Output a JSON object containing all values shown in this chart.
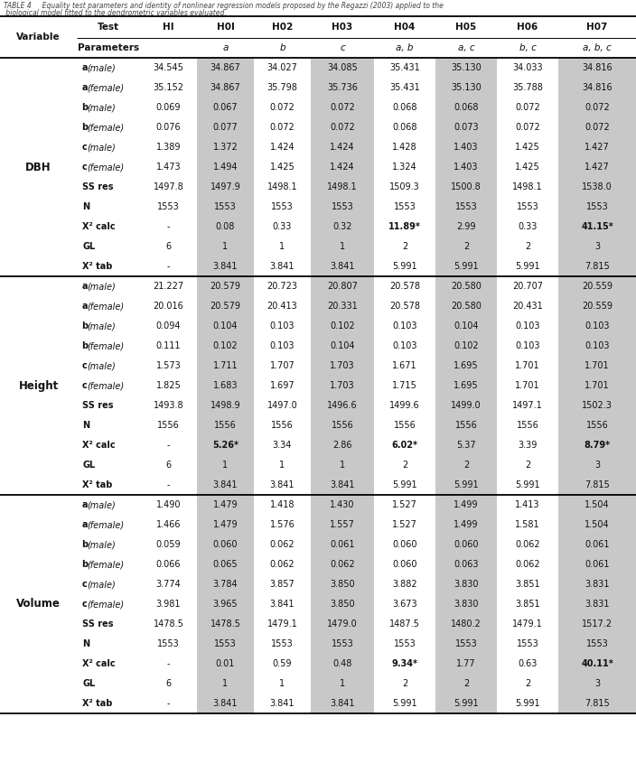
{
  "title_line1": "TABLE 4     Equality test parameters and identity of nonlinear regression models proposed by the Regazzi (2003) applied to the",
  "title_line2": " biological model fitted to the dendrometric variables evaluated.",
  "sections": [
    {
      "name": "DBH",
      "rows": [
        {
          "lb": "a",
          "li": "(male)",
          "values": [
            "34.545",
            "34.867",
            "34.027",
            "34.085",
            "35.431",
            "35.130",
            "34.033",
            "34.816"
          ],
          "bv": [
            0,
            0,
            0,
            0,
            0,
            0,
            0,
            0
          ]
        },
        {
          "lb": "a",
          "li": "(female)",
          "values": [
            "35.152",
            "34.867",
            "35.798",
            "35.736",
            "35.431",
            "35.130",
            "35.788",
            "34.816"
          ],
          "bv": [
            0,
            0,
            0,
            0,
            0,
            0,
            0,
            0
          ]
        },
        {
          "lb": "b",
          "li": "(male)",
          "values": [
            "0.069",
            "0.067",
            "0.072",
            "0.072",
            "0.068",
            "0.068",
            "0.072",
            "0.072"
          ],
          "bv": [
            0,
            0,
            0,
            0,
            0,
            0,
            0,
            0
          ]
        },
        {
          "lb": "b",
          "li": "(female)",
          "values": [
            "0.076",
            "0.077",
            "0.072",
            "0.072",
            "0.068",
            "0.073",
            "0.072",
            "0.072"
          ],
          "bv": [
            0,
            0,
            0,
            0,
            0,
            0,
            0,
            0
          ]
        },
        {
          "lb": "c",
          "li": "(male)",
          "values": [
            "1.389",
            "1.372",
            "1.424",
            "1.424",
            "1.428",
            "1.403",
            "1.425",
            "1.427"
          ],
          "bv": [
            0,
            0,
            0,
            0,
            0,
            0,
            0,
            0
          ]
        },
        {
          "lb": "c",
          "li": "(female)",
          "values": [
            "1.473",
            "1.494",
            "1.425",
            "1.424",
            "1.324",
            "1.403",
            "1.425",
            "1.427"
          ],
          "bv": [
            0,
            0,
            0,
            0,
            0,
            0,
            0,
            0
          ]
        },
        {
          "lb": "SS res",
          "li": "",
          "values": [
            "1497.8",
            "1497.9",
            "1498.1",
            "1498.1",
            "1509.3",
            "1500.8",
            "1498.1",
            "1538.0"
          ],
          "bv": [
            0,
            0,
            0,
            0,
            0,
            0,
            0,
            0
          ]
        },
        {
          "lb": "N",
          "li": "",
          "values": [
            "1553",
            "1553",
            "1553",
            "1553",
            "1553",
            "1553",
            "1553",
            "1553"
          ],
          "bv": [
            0,
            0,
            0,
            0,
            0,
            0,
            0,
            0
          ]
        },
        {
          "lb": "X² calc",
          "li": "",
          "values": [
            "-",
            "0.08",
            "0.33",
            "0.32",
            "11.89*",
            "2.99",
            "0.33",
            "41.15*"
          ],
          "bv": [
            0,
            0,
            0,
            0,
            1,
            0,
            0,
            1
          ]
        },
        {
          "lb": "GL",
          "li": "",
          "values": [
            "6",
            "1",
            "1",
            "1",
            "2",
            "2",
            "2",
            "3"
          ],
          "bv": [
            0,
            0,
            0,
            0,
            0,
            0,
            0,
            0
          ]
        },
        {
          "lb": "X² tab",
          "li": "",
          "values": [
            "-",
            "3.841",
            "3.841",
            "3.841",
            "5.991",
            "5.991",
            "5.991",
            "7.815"
          ],
          "bv": [
            0,
            0,
            0,
            0,
            0,
            0,
            0,
            0
          ]
        }
      ]
    },
    {
      "name": "Height",
      "rows": [
        {
          "lb": "a",
          "li": "(male)",
          "values": [
            "21.227",
            "20.579",
            "20.723",
            "20.807",
            "20.578",
            "20.580",
            "20.707",
            "20.559"
          ],
          "bv": [
            0,
            0,
            0,
            0,
            0,
            0,
            0,
            0
          ]
        },
        {
          "lb": "a",
          "li": "(female)",
          "values": [
            "20.016",
            "20.579",
            "20.413",
            "20.331",
            "20.578",
            "20.580",
            "20.431",
            "20.559"
          ],
          "bv": [
            0,
            0,
            0,
            0,
            0,
            0,
            0,
            0
          ]
        },
        {
          "lb": "b",
          "li": "(male)",
          "values": [
            "0.094",
            "0.104",
            "0.103",
            "0.102",
            "0.103",
            "0.104",
            "0.103",
            "0.103"
          ],
          "bv": [
            0,
            0,
            0,
            0,
            0,
            0,
            0,
            0
          ]
        },
        {
          "lb": "b",
          "li": "(female)",
          "values": [
            "0.111",
            "0.102",
            "0.103",
            "0.104",
            "0.103",
            "0.102",
            "0.103",
            "0.103"
          ],
          "bv": [
            0,
            0,
            0,
            0,
            0,
            0,
            0,
            0
          ]
        },
        {
          "lb": "c",
          "li": "(male)",
          "values": [
            "1.573",
            "1.711",
            "1.707",
            "1.703",
            "1.671",
            "1.695",
            "1.701",
            "1.701"
          ],
          "bv": [
            0,
            0,
            0,
            0,
            0,
            0,
            0,
            0
          ]
        },
        {
          "lb": "c",
          "li": "(female)",
          "values": [
            "1.825",
            "1.683",
            "1.697",
            "1.703",
            "1.715",
            "1.695",
            "1.701",
            "1.701"
          ],
          "bv": [
            0,
            0,
            0,
            0,
            0,
            0,
            0,
            0
          ]
        },
        {
          "lb": "SS res",
          "li": "",
          "values": [
            "1493.8",
            "1498.9",
            "1497.0",
            "1496.6",
            "1499.6",
            "1499.0",
            "1497.1",
            "1502.3"
          ],
          "bv": [
            0,
            0,
            0,
            0,
            0,
            0,
            0,
            0
          ]
        },
        {
          "lb": "N",
          "li": "",
          "values": [
            "1556",
            "1556",
            "1556",
            "1556",
            "1556",
            "1556",
            "1556",
            "1556"
          ],
          "bv": [
            0,
            0,
            0,
            0,
            0,
            0,
            0,
            0
          ]
        },
        {
          "lb": "X² calc",
          "li": "",
          "values": [
            "-",
            "5.26*",
            "3.34",
            "2.86",
            "6.02*",
            "5.37",
            "3.39",
            "8.79*"
          ],
          "bv": [
            0,
            1,
            0,
            0,
            1,
            0,
            0,
            1
          ]
        },
        {
          "lb": "GL",
          "li": "",
          "values": [
            "6",
            "1",
            "1",
            "1",
            "2",
            "2",
            "2",
            "3"
          ],
          "bv": [
            0,
            0,
            0,
            0,
            0,
            0,
            0,
            0
          ]
        },
        {
          "lb": "X² tab",
          "li": "",
          "values": [
            "-",
            "3.841",
            "3.841",
            "3.841",
            "5.991",
            "5.991",
            "5.991",
            "7.815"
          ],
          "bv": [
            0,
            0,
            0,
            0,
            0,
            0,
            0,
            0
          ]
        }
      ]
    },
    {
      "name": "Volume",
      "rows": [
        {
          "lb": "a",
          "li": "(male)",
          "values": [
            "1.490",
            "1.479",
            "1.418",
            "1.430",
            "1.527",
            "1.499",
            "1.413",
            "1.504"
          ],
          "bv": [
            0,
            0,
            0,
            0,
            0,
            0,
            0,
            0
          ]
        },
        {
          "lb": "a",
          "li": "(female)",
          "values": [
            "1.466",
            "1.479",
            "1.576",
            "1.557",
            "1.527",
            "1.499",
            "1.581",
            "1.504"
          ],
          "bv": [
            0,
            0,
            0,
            0,
            0,
            0,
            0,
            0
          ]
        },
        {
          "lb": "b",
          "li": "(male)",
          "values": [
            "0.059",
            "0.060",
            "0.062",
            "0.061",
            "0.060",
            "0.060",
            "0.062",
            "0.061"
          ],
          "bv": [
            0,
            0,
            0,
            0,
            0,
            0,
            0,
            0
          ]
        },
        {
          "lb": "b",
          "li": "(female)",
          "values": [
            "0.066",
            "0.065",
            "0.062",
            "0.062",
            "0.060",
            "0.063",
            "0.062",
            "0.061"
          ],
          "bv": [
            0,
            0,
            0,
            0,
            0,
            0,
            0,
            0
          ]
        },
        {
          "lb": "c",
          "li": "(male)",
          "values": [
            "3.774",
            "3.784",
            "3.857",
            "3.850",
            "3.882",
            "3.830",
            "3.851",
            "3.831"
          ],
          "bv": [
            0,
            0,
            0,
            0,
            0,
            0,
            0,
            0
          ]
        },
        {
          "lb": "c",
          "li": "(female)",
          "values": [
            "3.981",
            "3.965",
            "3.841",
            "3.850",
            "3.673",
            "3.830",
            "3.851",
            "3.831"
          ],
          "bv": [
            0,
            0,
            0,
            0,
            0,
            0,
            0,
            0
          ]
        },
        {
          "lb": "SS res",
          "li": "",
          "values": [
            "1478.5",
            "1478.5",
            "1479.1",
            "1479.0",
            "1487.5",
            "1480.2",
            "1479.1",
            "1517.2"
          ],
          "bv": [
            0,
            0,
            0,
            0,
            0,
            0,
            0,
            0
          ]
        },
        {
          "lb": "N",
          "li": "",
          "values": [
            "1553",
            "1553",
            "1553",
            "1553",
            "1553",
            "1553",
            "1553",
            "1553"
          ],
          "bv": [
            0,
            0,
            0,
            0,
            0,
            0,
            0,
            0
          ]
        },
        {
          "lb": "X² calc",
          "li": "",
          "values": [
            "-",
            "0.01",
            "0.59",
            "0.48",
            "9.34*",
            "1.77",
            "0.63",
            "40.11*"
          ],
          "bv": [
            0,
            0,
            0,
            0,
            1,
            0,
            0,
            1
          ]
        },
        {
          "lb": "GL",
          "li": "",
          "values": [
            "6",
            "1",
            "1",
            "1",
            "2",
            "2",
            "2",
            "3"
          ],
          "bv": [
            0,
            0,
            0,
            0,
            0,
            0,
            0,
            0
          ]
        },
        {
          "lb": "X² tab",
          "li": "",
          "values": [
            "-",
            "3.841",
            "3.841",
            "3.841",
            "5.991",
            "5.991",
            "5.991",
            "7.815"
          ],
          "bv": [
            0,
            0,
            0,
            0,
            0,
            0,
            0,
            0
          ]
        }
      ]
    }
  ],
  "shaded_val_cols": [
    1,
    3,
    5,
    7
  ],
  "shade_color": "#c8c8c8",
  "line_color": "#000000",
  "bg_color": "#ffffff"
}
